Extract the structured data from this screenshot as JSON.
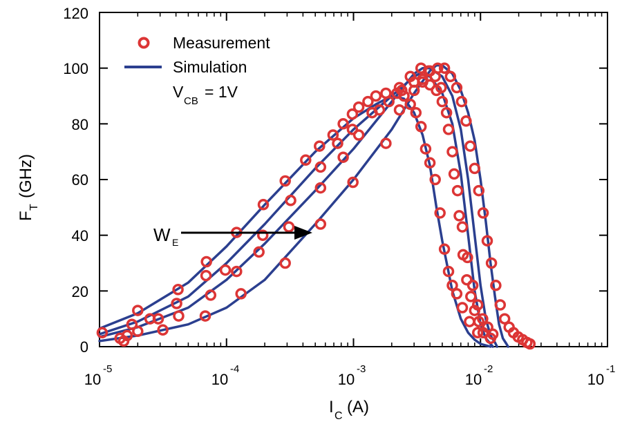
{
  "chart_data": {
    "type": "line",
    "x_scale": "log",
    "xlim": [
      1e-05,
      0.1
    ],
    "ylim": [
      0,
      120
    ],
    "xlabel": {
      "main": "I",
      "sub": "C",
      "unit": "(A)"
    },
    "ylabel": {
      "main": "F",
      "sub": "T",
      "unit": "(GHz)"
    },
    "x_ticks": [
      {
        "base": "10",
        "exp": "-5"
      },
      {
        "base": "10",
        "exp": "-4"
      },
      {
        "base": "10",
        "exp": "-3"
      },
      {
        "base": "10",
        "exp": "-2"
      },
      {
        "base": "10",
        "exp": "-1"
      }
    ],
    "y_ticks": [
      "0",
      "20",
      "40",
      "60",
      "80",
      "100",
      "120"
    ],
    "legend": {
      "placement": "top-left",
      "entries": [
        {
          "label": "Measurement",
          "marker": "circle"
        },
        {
          "label": "Simulation",
          "marker": "line"
        }
      ],
      "condition": {
        "main": "V",
        "sub": "CB",
        "rest": "= 1V"
      }
    },
    "annotation": {
      "main": "W",
      "sub": "E",
      "arrow": "right"
    },
    "colors": {
      "measurement": "#dc3535",
      "simulation": "#2b3f8f"
    },
    "series": [
      {
        "simulation": [
          [
            1e-05,
            6.5
          ],
          [
            2e-05,
            12
          ],
          [
            5e-05,
            23
          ],
          [
            0.0001,
            36
          ],
          [
            0.0002,
            51
          ],
          [
            0.0005,
            70
          ],
          [
            0.001,
            82
          ],
          [
            0.0015,
            87
          ],
          [
            0.002,
            90
          ],
          [
            0.0025,
            89
          ],
          [
            0.003,
            84
          ],
          [
            0.0035,
            76
          ],
          [
            0.004,
            65
          ],
          [
            0.0045,
            50
          ],
          [
            0.005,
            38
          ],
          [
            0.006,
            20
          ],
          [
            0.007,
            10
          ],
          [
            0.008,
            5
          ],
          [
            0.009,
            2.5
          ],
          [
            0.01,
            1
          ],
          [
            0.012,
            0
          ]
        ],
        "measurement": [
          [
            1.05e-05,
            5
          ],
          [
            2e-05,
            13
          ],
          [
            4.15e-05,
            20.5
          ],
          [
            6.95e-05,
            30.5
          ],
          [
            0.00012,
            41
          ],
          [
            0.000195,
            51
          ],
          [
            0.00029,
            59.5
          ],
          [
            0.00042,
            67
          ],
          [
            0.00054,
            72
          ],
          [
            0.00069,
            76
          ],
          [
            0.00083,
            80
          ],
          [
            0.00098,
            83.5
          ],
          [
            0.0011,
            86
          ],
          [
            0.0013,
            88
          ],
          [
            0.0015,
            90
          ],
          [
            0.0018,
            91
          ],
          [
            0.0022,
            91
          ],
          [
            0.0025,
            90
          ],
          [
            0.0028,
            87
          ],
          [
            0.0031,
            84
          ],
          [
            0.0034,
            79
          ],
          [
            0.0037,
            71
          ],
          [
            0.004,
            66
          ],
          [
            0.0044,
            60
          ],
          [
            0.0048,
            48
          ],
          [
            0.0052,
            35
          ],
          [
            0.0056,
            27
          ],
          [
            0.006,
            22
          ],
          [
            0.0065,
            19
          ],
          [
            0.0072,
            14
          ],
          [
            0.0082,
            9
          ],
          [
            0.0095,
            5
          ]
        ]
      },
      {
        "simulation": [
          [
            1e-05,
            4.5
          ],
          [
            2e-05,
            9
          ],
          [
            5e-05,
            18
          ],
          [
            0.0001,
            30
          ],
          [
            0.0002,
            44
          ],
          [
            0.0005,
            64
          ],
          [
            0.001,
            78
          ],
          [
            0.002,
            90
          ],
          [
            0.003,
            97
          ],
          [
            0.0033,
            98
          ],
          [
            0.004,
            97
          ],
          [
            0.005,
            91
          ],
          [
            0.006,
            80
          ],
          [
            0.007,
            62
          ],
          [
            0.008,
            40
          ],
          [
            0.009,
            20
          ],
          [
            0.01,
            8
          ],
          [
            0.011,
            3
          ],
          [
            0.012,
            1
          ],
          [
            0.0125,
            0
          ]
        ],
        "measurement": [
          [
            1.45e-05,
            3
          ],
          [
            1.8e-05,
            8
          ],
          [
            2.5e-05,
            10
          ],
          [
            4.05e-05,
            15.5
          ],
          [
            6.9e-05,
            25.5
          ],
          [
            9.8e-05,
            27.5
          ],
          [
            0.000193,
            40
          ],
          [
            0.00032,
            52.5
          ],
          [
            0.00055,
            64.5
          ],
          [
            0.00075,
            73
          ],
          [
            0.00098,
            78
          ],
          [
            0.0014,
            84
          ],
          [
            0.0019,
            88
          ],
          [
            0.0024,
            92
          ],
          [
            0.003,
            95
          ],
          [
            0.0035,
            95
          ],
          [
            0.004,
            94
          ],
          [
            0.0045,
            92
          ],
          [
            0.005,
            88
          ],
          [
            0.0056,
            78
          ],
          [
            0.0062,
            62
          ],
          [
            0.0068,
            47
          ],
          [
            0.0073,
            33
          ],
          [
            0.0078,
            24
          ],
          [
            0.0084,
            18
          ],
          [
            0.009,
            13
          ],
          [
            0.0097,
            9
          ],
          [
            0.0105,
            5
          ],
          [
            0.012,
            3
          ]
        ]
      },
      {
        "simulation": [
          [
            1e-05,
            3.5
          ],
          [
            2e-05,
            7
          ],
          [
            5e-05,
            14
          ],
          [
            0.0001,
            24
          ],
          [
            0.0002,
            37
          ],
          [
            0.0005,
            56
          ],
          [
            0.001,
            71
          ],
          [
            0.002,
            88
          ],
          [
            0.003,
            98
          ],
          [
            0.0035,
            100
          ],
          [
            0.004,
            100
          ],
          [
            0.005,
            97
          ],
          [
            0.006,
            90
          ],
          [
            0.007,
            78
          ],
          [
            0.008,
            60
          ],
          [
            0.009,
            40
          ],
          [
            0.01,
            22
          ],
          [
            0.011,
            10
          ],
          [
            0.012,
            4
          ],
          [
            0.013,
            1.5
          ],
          [
            0.0135,
            0
          ]
        ],
        "measurement": [
          [
            1.55e-05,
            2
          ],
          [
            2e-05,
            5.5
          ],
          [
            3.15e-05,
            6
          ],
          [
            4.2e-05,
            11
          ],
          [
            7.5e-05,
            18.5
          ],
          [
            0.00012,
            27
          ],
          [
            0.00018,
            34
          ],
          [
            0.00031,
            43
          ],
          [
            0.00055,
            57
          ],
          [
            0.00083,
            68
          ],
          [
            0.0011,
            76
          ],
          [
            0.0016,
            85
          ],
          [
            0.0023,
            93
          ],
          [
            0.0028,
            97
          ],
          [
            0.0034,
            100
          ],
          [
            0.0039,
            99
          ],
          [
            0.0044,
            97
          ],
          [
            0.0049,
            93
          ],
          [
            0.0054,
            84
          ],
          [
            0.006,
            70
          ],
          [
            0.0066,
            56
          ],
          [
            0.0072,
            43
          ],
          [
            0.0079,
            32
          ],
          [
            0.0087,
            22
          ],
          [
            0.0095,
            15
          ],
          [
            0.0104,
            10
          ],
          [
            0.0114,
            7
          ],
          [
            0.0125,
            4.5
          ]
        ]
      },
      {
        "simulation": [
          [
            1e-05,
            2
          ],
          [
            2e-05,
            4
          ],
          [
            5e-05,
            8
          ],
          [
            0.0001,
            14
          ],
          [
            0.0002,
            24
          ],
          [
            0.0005,
            44
          ],
          [
            0.001,
            60
          ],
          [
            0.002,
            78
          ],
          [
            0.003,
            91
          ],
          [
            0.004,
            99
          ],
          [
            0.0045,
            101
          ],
          [
            0.005,
            101
          ],
          [
            0.006,
            98
          ],
          [
            0.007,
            92
          ],
          [
            0.008,
            84
          ],
          [
            0.009,
            74
          ],
          [
            0.01,
            60
          ],
          [
            0.011,
            45
          ],
          [
            0.012,
            30
          ],
          [
            0.013,
            18
          ],
          [
            0.014,
            8
          ],
          [
            0.015,
            3
          ],
          [
            0.016,
            1
          ],
          [
            0.0165,
            0
          ]
        ],
        "measurement": [
          [
            1.65e-05,
            4
          ],
          [
            2.9e-05,
            10
          ],
          [
            6.8e-05,
            11
          ],
          [
            0.00013,
            19
          ],
          [
            0.00029,
            30
          ],
          [
            0.00055,
            44
          ],
          [
            0.00099,
            59
          ],
          [
            0.0018,
            73
          ],
          [
            0.0023,
            85
          ],
          [
            0.003,
            92
          ],
          [
            0.0035,
            96
          ],
          [
            0.004,
            99
          ],
          [
            0.0046,
            100
          ],
          [
            0.0052,
            100
          ],
          [
            0.0058,
            97
          ],
          [
            0.0065,
            93
          ],
          [
            0.0071,
            88
          ],
          [
            0.0077,
            81
          ],
          [
            0.0083,
            72
          ],
          [
            0.009,
            64
          ],
          [
            0.0097,
            56
          ],
          [
            0.0105,
            48
          ],
          [
            0.0113,
            38
          ],
          [
            0.0122,
            30
          ],
          [
            0.0132,
            22
          ],
          [
            0.0143,
            15
          ],
          [
            0.0155,
            10
          ],
          [
            0.0168,
            7
          ],
          [
            0.0182,
            5
          ],
          [
            0.0198,
            3.5
          ],
          [
            0.0215,
            2.5
          ],
          [
            0.0232,
            1.5
          ],
          [
            0.0245,
            1
          ]
        ]
      }
    ]
  }
}
